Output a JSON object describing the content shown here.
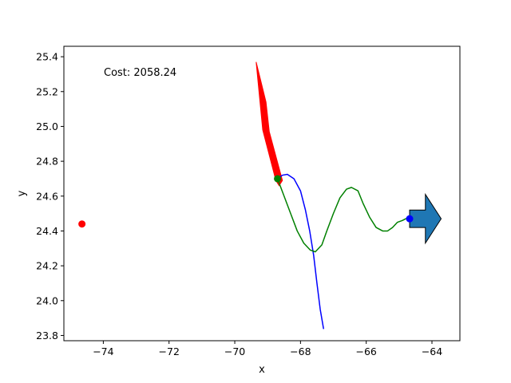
{
  "chart_data": {
    "type": "line",
    "xlabel": "x",
    "ylabel": "y",
    "xlim": [
      -75.2,
      -63.15
    ],
    "ylim": [
      23.77,
      25.46
    ],
    "xticks": [
      -74,
      -72,
      -70,
      -68,
      -66,
      -64
    ],
    "yticks": [
      23.8,
      24.0,
      24.2,
      24.4,
      24.6,
      24.8,
      25.0,
      25.2,
      25.4
    ],
    "xtick_labels": [
      "−74",
      "−72",
      "−70",
      "−68",
      "−66",
      "−64"
    ],
    "ytick_labels": [
      "23.8",
      "24.0",
      "24.2",
      "24.4",
      "24.6",
      "24.8",
      "25.0",
      "25.2",
      "25.4"
    ],
    "annotation": "Cost: 2058.24",
    "grid": false,
    "colors": {
      "blue_path": "#0000ff",
      "green_path": "#008000",
      "red_arrow": "#ff0000",
      "target_arrow": "#1f77b4",
      "red_point": "#ff0000",
      "green_point": "#008000",
      "blue_point": "#0000ff"
    },
    "series": [
      {
        "color": "blue",
        "points": [
          [
            -68.7,
            24.7
          ],
          [
            -68.55,
            24.72
          ],
          [
            -68.4,
            24.725
          ],
          [
            -68.2,
            24.7
          ],
          [
            -68.0,
            24.63
          ],
          [
            -67.85,
            24.52
          ],
          [
            -67.72,
            24.4
          ],
          [
            -67.6,
            24.26
          ],
          [
            -67.5,
            24.1
          ],
          [
            -67.4,
            23.95
          ],
          [
            -67.3,
            23.84
          ]
        ]
      },
      {
        "color": "green",
        "points": [
          [
            -68.7,
            24.7
          ],
          [
            -68.5,
            24.6
          ],
          [
            -68.3,
            24.5
          ],
          [
            -68.1,
            24.4
          ],
          [
            -67.9,
            24.33
          ],
          [
            -67.7,
            24.29
          ],
          [
            -67.55,
            24.28
          ],
          [
            -67.35,
            24.32
          ],
          [
            -67.2,
            24.4
          ],
          [
            -67.0,
            24.5
          ],
          [
            -66.8,
            24.59
          ],
          [
            -66.6,
            24.64
          ],
          [
            -66.45,
            24.65
          ],
          [
            -66.25,
            24.63
          ],
          [
            -66.1,
            24.56
          ],
          [
            -65.9,
            24.48
          ],
          [
            -65.7,
            24.42
          ],
          [
            -65.5,
            24.4
          ],
          [
            -65.35,
            24.4
          ],
          [
            -65.2,
            24.42
          ],
          [
            -65.05,
            24.45
          ],
          [
            -64.9,
            24.46
          ],
          [
            -64.8,
            24.47
          ],
          [
            -64.68,
            24.47
          ]
        ]
      }
    ],
    "points": [
      {
        "color": "red",
        "x": -74.65,
        "y": 24.44
      },
      {
        "color": "green",
        "x": -68.7,
        "y": 24.7
      },
      {
        "color": "blue",
        "x": -64.68,
        "y": 24.47
      }
    ],
    "arrows": [
      {
        "color": "red",
        "shape": [
          [
            -68.65,
            24.66
          ],
          [
            -68.55,
            24.69
          ],
          [
            -68.95,
            24.97
          ],
          [
            -69.05,
            25.14
          ],
          [
            -69.35,
            25.37
          ],
          [
            -69.15,
            24.98
          ],
          [
            -68.75,
            24.69
          ]
        ]
      },
      {
        "color": "steelblue",
        "shape": [
          [
            -64.68,
            24.52
          ],
          [
            -64.2,
            24.52
          ],
          [
            -64.2,
            24.61
          ],
          [
            -63.72,
            24.47
          ],
          [
            -64.2,
            24.33
          ],
          [
            -64.2,
            24.42
          ],
          [
            -64.68,
            24.42
          ]
        ]
      }
    ]
  }
}
